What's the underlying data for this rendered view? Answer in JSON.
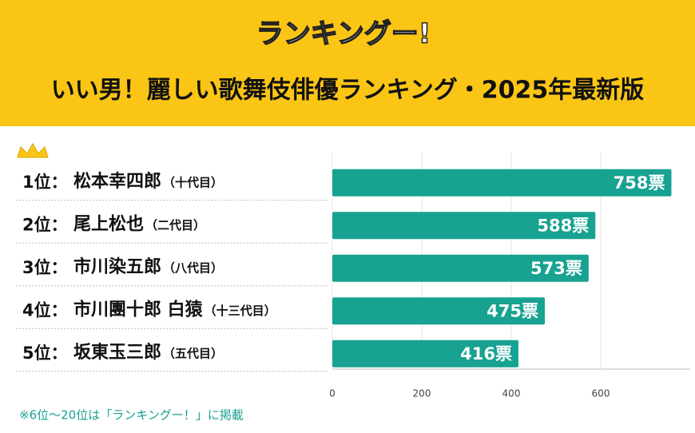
{
  "chart_data": {
    "type": "bar",
    "orientation": "horizontal",
    "logo": "ランキングー!",
    "title": "いい男！麗しい歌舞伎俳優ランキング・2025年最新版",
    "ranks": [
      "1位：",
      "2位：",
      "3位：",
      "4位：",
      "5位："
    ],
    "categories": [
      "松本幸四郎",
      "尾上松也",
      "市川染五郎",
      "市川團十郎 白猿",
      "坂東玉三郎"
    ],
    "generations": [
      "（十代目）",
      "（二代目）",
      "（八代目）",
      "（十三代目）",
      "（五代目）"
    ],
    "values": [
      758,
      588,
      573,
      475,
      416
    ],
    "value_labels": [
      "758票",
      "588票",
      "573票",
      "475票",
      "416票"
    ],
    "color": "#17a291",
    "xlim": [
      0,
      800
    ],
    "xticks": [
      0,
      200,
      400,
      600
    ],
    "grid": true,
    "footnote": "※6位～20位は「ランキングー！」に掲載"
  }
}
